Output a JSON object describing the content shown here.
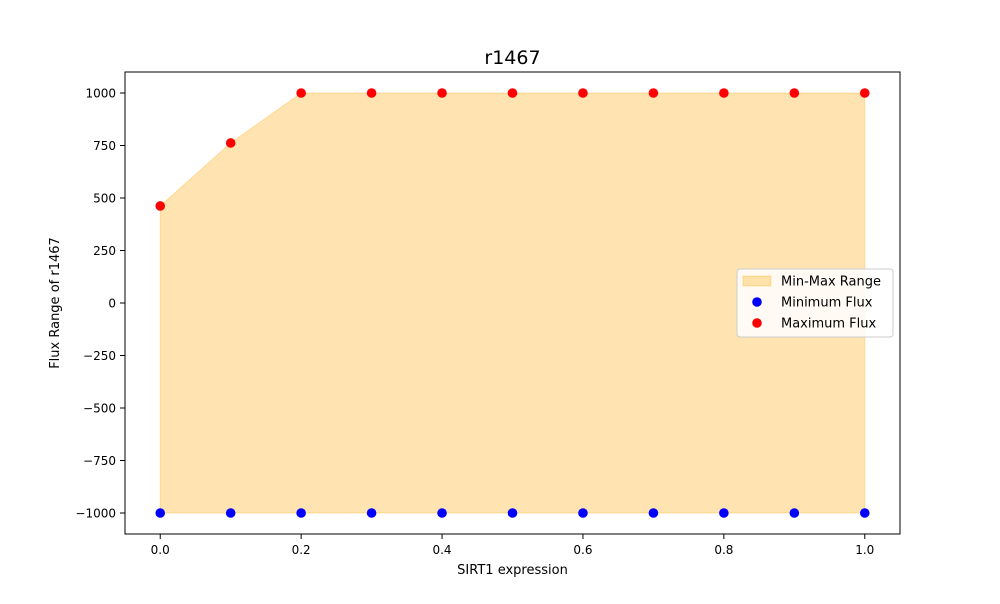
{
  "chart_data": {
    "type": "scatter",
    "title": "r1467",
    "xlabel": "SIRT1 expression",
    "ylabel": "Flux Range of r1467",
    "xlim": [
      -0.05,
      1.05
    ],
    "ylim": [
      -1100,
      1100
    ],
    "x_ticks": [
      0.0,
      0.2,
      0.4,
      0.6,
      0.8,
      1.0
    ],
    "x_tick_labels": [
      "0.0",
      "0.2",
      "0.4",
      "0.6",
      "0.8",
      "1.0"
    ],
    "y_ticks": [
      -1000,
      -750,
      -500,
      -250,
      0,
      250,
      500,
      750,
      1000
    ],
    "y_tick_labels": [
      "−1000",
      "−750",
      "−500",
      "−250",
      "0",
      "250",
      "500",
      "750",
      "1000"
    ],
    "x": [
      0.0,
      0.1,
      0.2,
      0.3,
      0.4,
      0.5,
      0.6,
      0.7,
      0.8,
      0.9,
      1.0
    ],
    "series": [
      {
        "name": "Min-Max Range",
        "kind": "fill_between",
        "color": "#ffa500",
        "opacity": 0.3
      },
      {
        "name": "Minimum Flux",
        "kind": "scatter",
        "color": "#0000ff",
        "values": [
          -1000,
          -1000,
          -1000,
          -1000,
          -1000,
          -1000,
          -1000,
          -1000,
          -1000,
          -1000,
          -1000
        ]
      },
      {
        "name": "Maximum Flux",
        "kind": "scatter",
        "color": "#ff0000",
        "values": [
          462,
          762,
          1000,
          1000,
          1000,
          1000,
          1000,
          1000,
          1000,
          1000,
          1000
        ]
      }
    ],
    "legend_position": "center-right",
    "grid": false
  }
}
